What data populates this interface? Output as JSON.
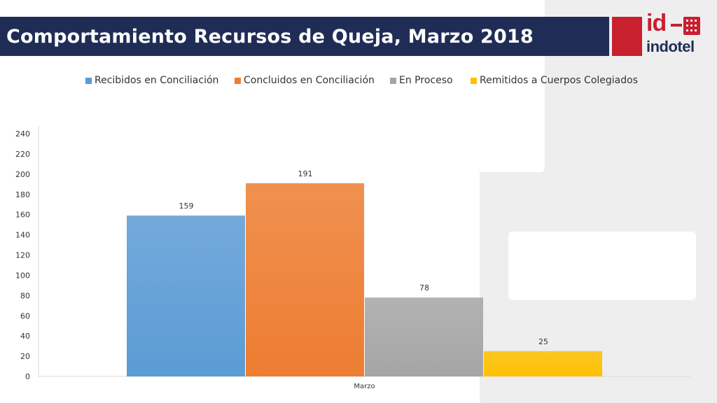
{
  "header": {
    "title": "Comportamiento Recursos de Queja, Marzo 2018"
  },
  "logo": {
    "mark_text": "id",
    "word_text": "indotel",
    "brand_red": "#c8202f",
    "brand_navy": "#1f2d56"
  },
  "chart_data": {
    "type": "bar",
    "categories": [
      "Marzo"
    ],
    "series": [
      {
        "name": "Recibidos en Conciliación",
        "values": [
          159
        ],
        "color": "#5b9bd5"
      },
      {
        "name": "Concluidos en Conciliación",
        "values": [
          191
        ],
        "color": "#ed7d31"
      },
      {
        "name": "En Proceso",
        "values": [
          78
        ],
        "color": "#a5a5a5"
      },
      {
        "name": "Remitidos a Cuerpos Colegiados",
        "values": [
          25
        ],
        "color": "#ffc000"
      }
    ],
    "ylim": [
      0,
      240
    ],
    "yticks": [
      0,
      20,
      40,
      60,
      80,
      100,
      120,
      140,
      160,
      180,
      200,
      220,
      240
    ],
    "legend_position": "top",
    "grid": false,
    "data_labels": true
  }
}
